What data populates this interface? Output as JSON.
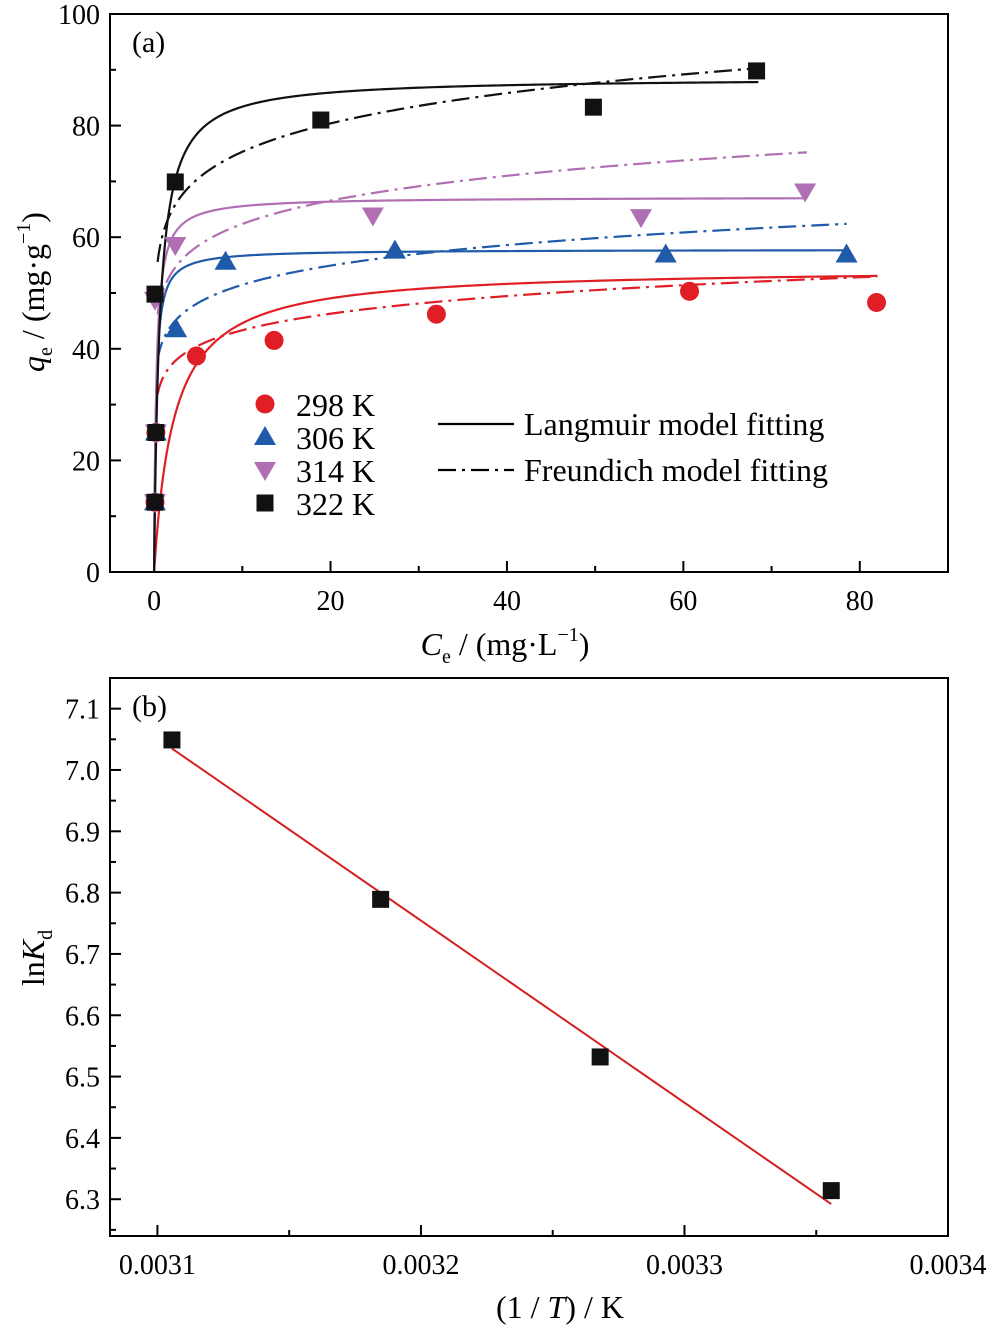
{
  "chart_data": [
    {
      "type": "scatter",
      "panel_label": "(a)",
      "xlabel": {
        "var": "C",
        "sub": "e",
        "rest": " / (mg·L",
        "sup": "−1",
        "close": ")"
      },
      "ylabel": {
        "var": "q",
        "sub": "e",
        "rest": " / (mg·g",
        "sup": "−1",
        "close": ")"
      },
      "xlim": [
        -5,
        90
      ],
      "ylim": [
        0,
        100
      ],
      "xticks": [
        0,
        20,
        40,
        60,
        80
      ],
      "yticks": [
        0,
        20,
        40,
        60,
        80,
        100
      ],
      "legend_position": "lower-left / center",
      "series": [
        {
          "name": "298 K",
          "marker": "circle",
          "color": "#e01e26",
          "x": [
            0.1,
            0.2,
            4.8,
            13.6,
            32,
            60.7,
            81.9
          ],
          "y": [
            12.5,
            25,
            38.7,
            41.5,
            46.2,
            50.3,
            48.3
          ],
          "langmuir": {
            "qm": 54.5,
            "KL": 0.45,
            "xmax": 82
          },
          "freundlich": {
            "KF": 34.8,
            "n": 10.5,
            "xmax": 82
          }
        },
        {
          "name": "306 K",
          "marker": "triangle-up",
          "color": "#1f5ba8",
          "x": [
            0.1,
            0.2,
            2.5,
            8.1,
            27.3,
            58,
            78.5
          ],
          "y": [
            12.5,
            25,
            43.5,
            55.6,
            57.6,
            56.9,
            56.9
          ],
          "langmuir": {
            "qm": 57.8,
            "KL": 5.0,
            "xmax": 78.5
          },
          "freundlich": {
            "KF": 41.5,
            "n": 10.7,
            "xmax": 78.5
          }
        },
        {
          "name": "314 K",
          "marker": "triangle-down",
          "color": "#b06fb3",
          "x": [
            0.1,
            0.2,
            0.1,
            2.4,
            24.8,
            55.2,
            73.8
          ],
          "y": [
            12.5,
            25,
            48.8,
            58.6,
            63.9,
            63.6,
            68.2
          ],
          "langmuir": {
            "qm": 67.2,
            "KL": 4.0,
            "xmax": 74
          },
          "freundlich": {
            "KF": 50.3,
            "n": 10.7,
            "xmax": 74
          }
        },
        {
          "name": "322 K",
          "marker": "square",
          "color": "#111111",
          "x": [
            0.1,
            0.2,
            0.1,
            2.4,
            18.9,
            49.8,
            68.3
          ],
          "y": [
            12.5,
            25,
            49.8,
            69.9,
            81,
            83.3,
            89.8
          ],
          "langmuir": {
            "qm": 88.6,
            "KL": 1.6,
            "xmax": 68.5
          },
          "freundlich": {
            "KF": 60.6,
            "n": 10.6,
            "xmax": 68.5
          }
        }
      ],
      "line_legend": [
        {
          "style": "solid",
          "label": "Langmuir model fitting"
        },
        {
          "style": "dashdot",
          "label": "Freundich model fitting"
        }
      ]
    },
    {
      "type": "scatter",
      "panel_label": "(b)",
      "xlabel": {
        "pre": "(1 / ",
        "var": "T",
        "post": ") / K"
      },
      "ylabel": {
        "pre": "ln",
        "var": "K",
        "sub": "d"
      },
      "xlim": [
        0.003082,
        0.0034
      ],
      "ylim": [
        6.24,
        7.15
      ],
      "xticks": [
        "0.0031",
        "0.0032",
        "0.0033",
        "0.0034"
      ],
      "yticks": [
        "6.3",
        "6.4",
        "6.5",
        "6.6",
        "6.7",
        "6.8",
        "6.9",
        "7.0",
        "7.1"
      ],
      "points": {
        "x": [
          0.0031055,
          0.0031847,
          0.003268,
          0.0033557
        ],
        "y": [
          7.049,
          6.789,
          6.532,
          6.314
        ],
        "color": "#111111",
        "marker": "square"
      },
      "fit": {
        "color": "#d42020",
        "x": [
          0.0031055,
          0.0033557
        ],
        "y": [
          7.035,
          6.292
        ]
      }
    }
  ]
}
